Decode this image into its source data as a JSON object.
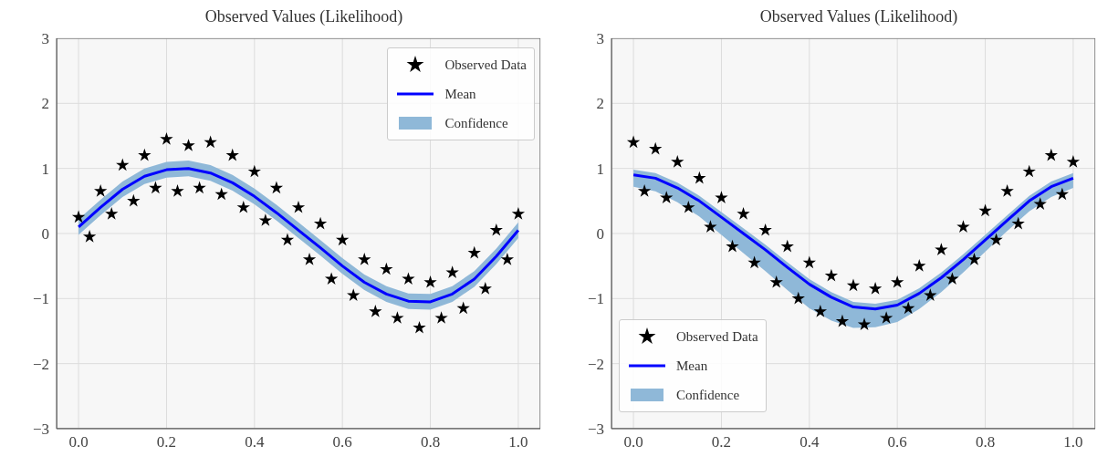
{
  "chart_data": [
    {
      "type": "scatter",
      "title": "Observed Values (Likelihood)",
      "xlim": [
        -0.05,
        1.05
      ],
      "ylim": [
        -3,
        3
      ],
      "xticks": [
        {
          "value": 0,
          "label": "0.0"
        },
        {
          "value": 0.2,
          "label": "0.2"
        },
        {
          "value": 0.4,
          "label": "0.4"
        },
        {
          "value": 0.6,
          "label": "0.6"
        },
        {
          "value": 0.8,
          "label": "0.8"
        },
        {
          "value": 1,
          "label": "1.0"
        }
      ],
      "yticks": [
        {
          "value": -3,
          "label": "−3"
        },
        {
          "value": -2,
          "label": "−2"
        },
        {
          "value": -1,
          "label": "−1"
        },
        0,
        1,
        2,
        3
      ],
      "grid": true,
      "legend": "top right",
      "line_style": "solid",
      "annotations": [
        "Confidence"
      ],
      "series": [
        {
          "type": "scatter",
          "name": "Observed Data",
          "color": "#000000",
          "marker": "star",
          "x": [
            0,
            0.025,
            0.05,
            0.075,
            0.1,
            0.125,
            0.15,
            0.175,
            0.2,
            0.225,
            0.25,
            0.275,
            0.3,
            0.325,
            0.35,
            0.375,
            0.4,
            0.425,
            0.45,
            0.475,
            0.5,
            0.525,
            0.55,
            0.575,
            0.6,
            0.625,
            0.65,
            0.675,
            0.7,
            0.725,
            0.75,
            0.775,
            0.8,
            0.825,
            0.85,
            0.875,
            0.9,
            0.925,
            0.95,
            0.975,
            1
          ],
          "values": [
            0.25,
            -0.05,
            0.65,
            0.3,
            1.05,
            0.5,
            1.2,
            0.7,
            1.45,
            0.65,
            1.35,
            0.7,
            1.4,
            0.6,
            1.2,
            0.4,
            0.95,
            0.2,
            0.7,
            -0.1,
            0.4,
            -0.4,
            0.15,
            -0.7,
            -0.1,
            -0.95,
            -0.4,
            -1.2,
            -0.55,
            -1.3,
            -0.7,
            -1.45,
            -0.75,
            -1.3,
            -0.6,
            -1.15,
            -0.3,
            -0.85,
            0.05,
            -0.4,
            0.3
          ]
        },
        {
          "type": "line",
          "name": "Mean",
          "color": "#0000ff",
          "marker": "none",
          "x": [
            0,
            0.05,
            0.1,
            0.15,
            0.2,
            0.25,
            0.3,
            0.35,
            0.4,
            0.45,
            0.5,
            0.55,
            0.6,
            0.65,
            0.7,
            0.75,
            0.8,
            0.85,
            0.9,
            0.95,
            1
          ],
          "values": [
            0.1,
            0.4,
            0.68,
            0.88,
            0.98,
            1.0,
            0.93,
            0.78,
            0.57,
            0.32,
            0.05,
            -0.22,
            -0.5,
            -0.75,
            -0.93,
            -1.04,
            -1.05,
            -0.93,
            -0.7,
            -0.35,
            0.05
          ],
          "lower": [
            -0.02,
            0.28,
            0.56,
            0.76,
            0.86,
            0.88,
            0.81,
            0.66,
            0.45,
            0.2,
            -0.07,
            -0.34,
            -0.62,
            -0.87,
            -1.05,
            -1.16,
            -1.17,
            -1.05,
            -0.82,
            -0.47,
            -0.07
          ],
          "upper": [
            0.22,
            0.52,
            0.8,
            1.0,
            1.1,
            1.12,
            1.05,
            0.9,
            0.69,
            0.44,
            0.17,
            -0.1,
            -0.38,
            -0.63,
            -0.81,
            -0.92,
            -0.93,
            -0.81,
            -0.58,
            -0.23,
            0.17
          ]
        }
      ]
    },
    {
      "type": "scatter",
      "title": "Observed Values (Likelihood)",
      "xlim": [
        -0.05,
        1.05
      ],
      "ylim": [
        -3,
        3
      ],
      "xticks": [
        {
          "value": 0,
          "label": "0.0"
        },
        {
          "value": 0.2,
          "label": "0.2"
        },
        {
          "value": 0.4,
          "label": "0.4"
        },
        {
          "value": 0.6,
          "label": "0.6"
        },
        {
          "value": 0.8,
          "label": "0.8"
        },
        {
          "value": 1,
          "label": "1.0"
        }
      ],
      "yticks": [
        {
          "value": -3,
          "label": "−3"
        },
        {
          "value": -2,
          "label": "−2"
        },
        {
          "value": -1,
          "label": "−1"
        },
        0,
        1,
        2,
        3
      ],
      "grid": true,
      "legend": "bottom left",
      "line_style": "solid",
      "annotations": [
        "Confidence"
      ],
      "series": [
        {
          "type": "scatter",
          "name": "Observed Data",
          "color": "#000000",
          "marker": "star",
          "x": [
            0,
            0.025,
            0.05,
            0.075,
            0.1,
            0.125,
            0.15,
            0.175,
            0.2,
            0.225,
            0.25,
            0.275,
            0.3,
            0.325,
            0.35,
            0.375,
            0.4,
            0.425,
            0.45,
            0.475,
            0.5,
            0.525,
            0.55,
            0.575,
            0.6,
            0.625,
            0.65,
            0.675,
            0.7,
            0.725,
            0.75,
            0.775,
            0.8,
            0.825,
            0.85,
            0.875,
            0.9,
            0.925,
            0.95,
            0.975,
            1
          ],
          "values": [
            1.4,
            0.65,
            1.3,
            0.55,
            1.1,
            0.4,
            0.85,
            0.1,
            0.55,
            -0.2,
            0.3,
            -0.45,
            0.05,
            -0.75,
            -0.2,
            -1.0,
            -0.45,
            -1.2,
            -0.65,
            -1.35,
            -0.8,
            -1.4,
            -0.85,
            -1.3,
            -0.75,
            -1.15,
            -0.5,
            -0.95,
            -0.25,
            -0.7,
            0.1,
            -0.4,
            0.35,
            -0.1,
            0.65,
            0.15,
            0.95,
            0.45,
            1.2,
            0.6,
            1.1
          ]
        },
        {
          "type": "line",
          "name": "Mean",
          "color": "#0000ff",
          "marker": "none",
          "x": [
            0,
            0.05,
            0.1,
            0.15,
            0.2,
            0.25,
            0.3,
            0.35,
            0.4,
            0.45,
            0.5,
            0.55,
            0.6,
            0.65,
            0.7,
            0.75,
            0.8,
            0.85,
            0.9,
            0.95,
            1
          ],
          "values": [
            0.9,
            0.85,
            0.7,
            0.5,
            0.25,
            0,
            -0.25,
            -0.52,
            -0.78,
            -0.98,
            -1.13,
            -1.16,
            -1.1,
            -0.92,
            -0.68,
            -0.4,
            -0.1,
            0.2,
            0.5,
            0.72,
            0.85
          ],
          "lower": [
            0.72,
            0.65,
            0.48,
            0.26,
            -0.02,
            -0.3,
            -0.58,
            -0.87,
            -1.15,
            -1.34,
            -1.45,
            -1.44,
            -1.36,
            -1.16,
            -0.9,
            -0.6,
            -0.28,
            0.04,
            0.34,
            0.56,
            0.7
          ],
          "upper": [
            0.98,
            0.93,
            0.78,
            0.58,
            0.33,
            0.08,
            -0.17,
            -0.44,
            -0.7,
            -0.9,
            -1.05,
            -1.08,
            -1.02,
            -0.84,
            -0.6,
            -0.32,
            -0.02,
            0.28,
            0.58,
            0.8,
            0.93
          ]
        }
      ]
    }
  ]
}
